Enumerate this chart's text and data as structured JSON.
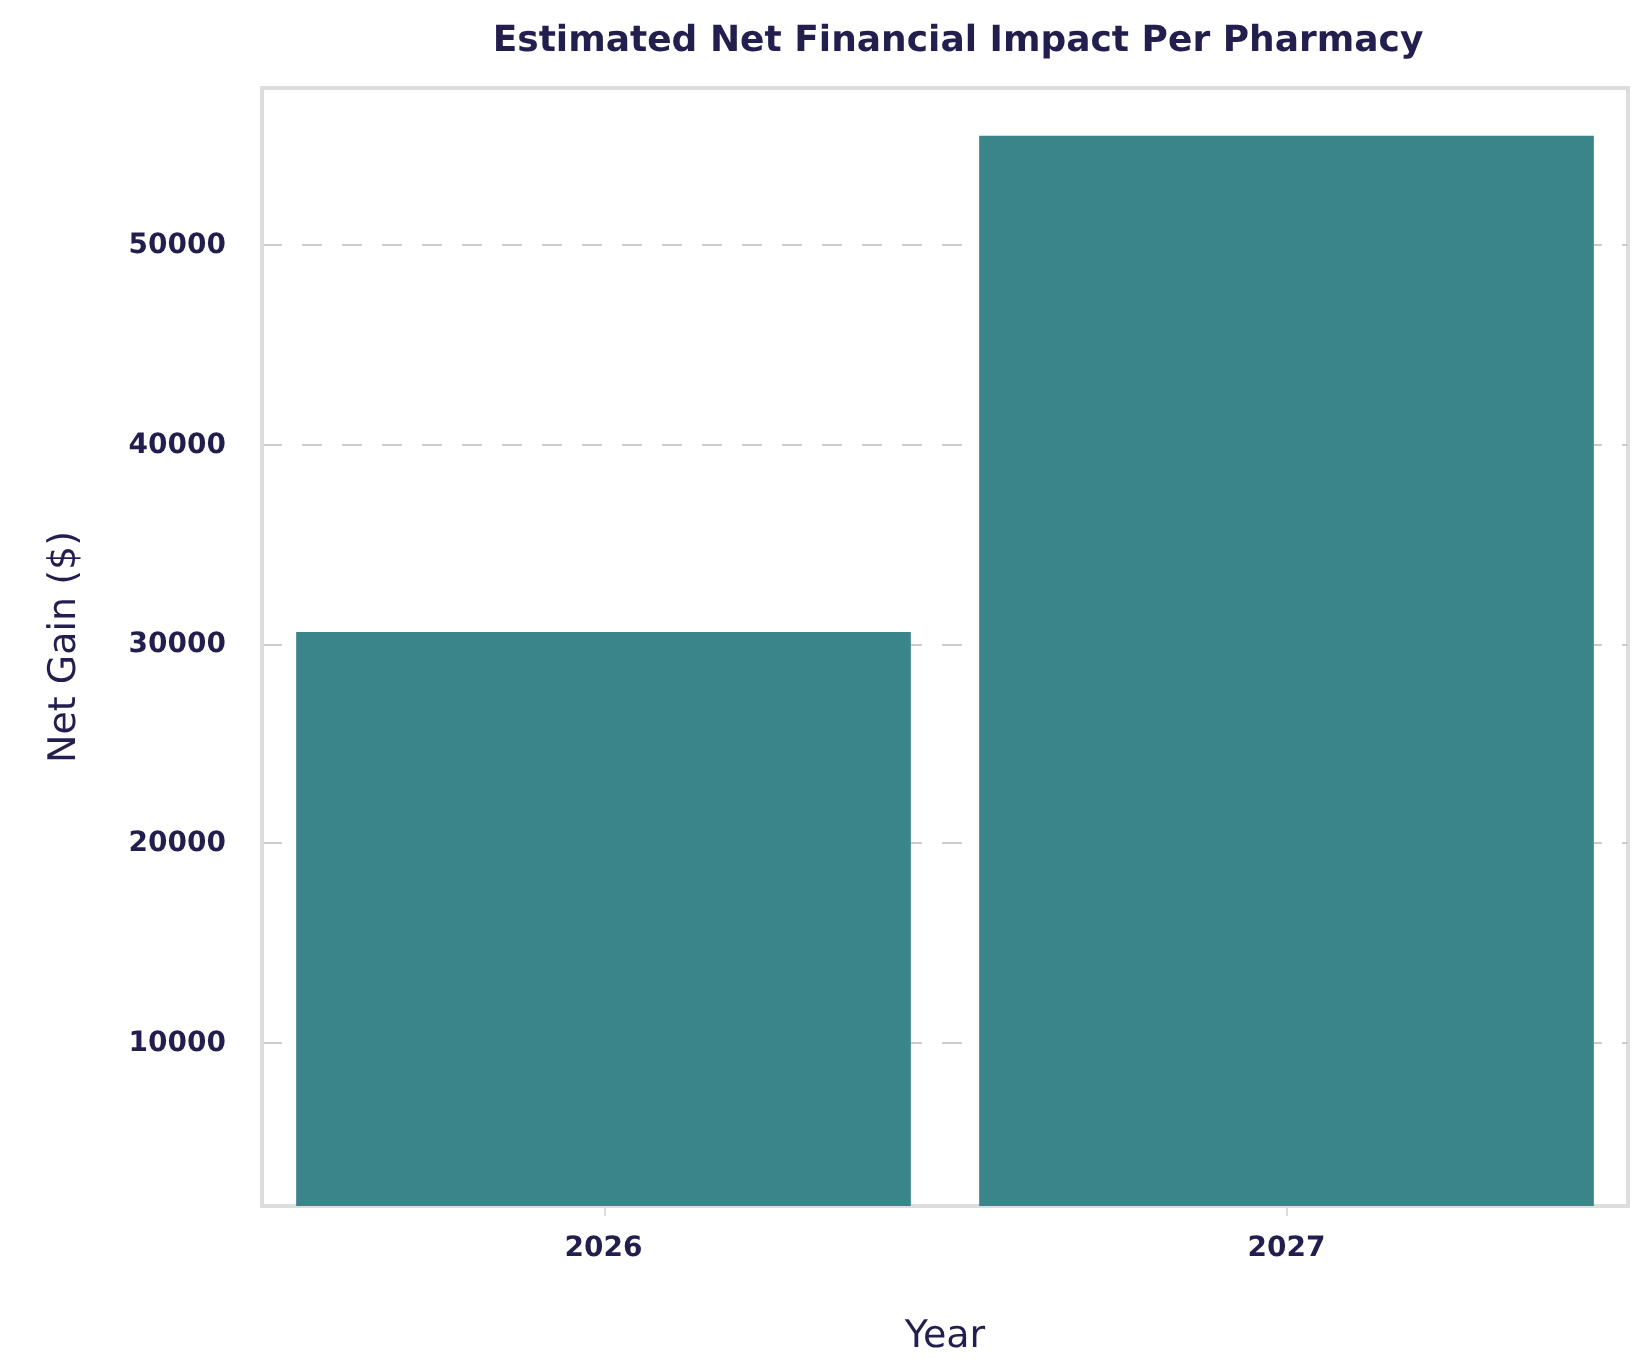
{
  "chart_data": {
    "type": "bar",
    "title": "Estimated Net Financial Impact Per Pharmacy",
    "xlabel": "Year",
    "ylabel": "Net Gain ($)",
    "categories": [
      "2026",
      "2027"
    ],
    "values": [
      30600,
      55500
    ],
    "color": "#3a8589",
    "ylim": [
      1800,
      57900
    ],
    "yticks": [
      10000,
      20000,
      30000,
      40000,
      50000
    ],
    "grid": "y"
  }
}
